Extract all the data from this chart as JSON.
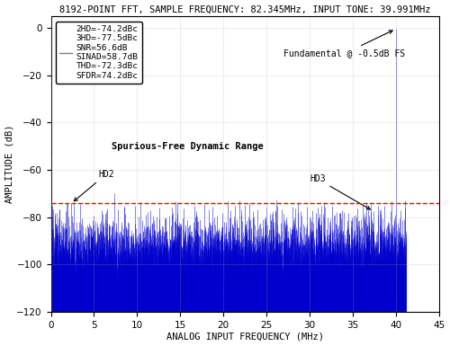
{
  "title": "8192-POINT FFT, SAMPLE FREQUENCY: 82.345MHz, INPUT TONE: 39.991MHz",
  "xlabel": "ANALOG INPUT FREQUENCY (MHz)",
  "ylabel": "AMPLITUDE (dB)",
  "xlim": [
    0,
    45
  ],
  "ylim": [
    -120,
    5
  ],
  "yticks": [
    0,
    -20,
    -40,
    -60,
    -80,
    -100,
    -120
  ],
  "xticks": [
    0,
    5,
    10,
    15,
    20,
    25,
    30,
    35,
    40,
    45
  ],
  "sample_freq": 82.345,
  "fundamental_freq": 39.991,
  "fundamental_amp": -0.5,
  "hd2_freq": 2.363,
  "hd2_amp": -74.2,
  "hd3_freq": 37.383,
  "hd3_amp": -77.5,
  "sfdr_level": -74.2,
  "legend_text": [
    "2HD=-74.2dBc",
    "3HD=-77.5dBc",
    "SNR=56.6dB",
    "SINAD=58.7dB",
    "THD=-72.3dBc",
    "SFDR=74.2dBc"
  ],
  "annotation_fundamental": "Fundamental @ -0.5dB FS",
  "annotation_sfdr": "Spurious-Free Dynamic Range",
  "annotation_hd2": "HD2",
  "annotation_hd3": "HD3",
  "noise_floor": -95,
  "noise_std": 7,
  "bg_color": "#ffffff",
  "noise_color": "#0000cc",
  "sfdr_line_color": "#ff0000",
  "grid_color": "#aaaaaa",
  "title_fontsize": 7.5,
  "label_fontsize": 7.5,
  "tick_fontsize": 7.5
}
